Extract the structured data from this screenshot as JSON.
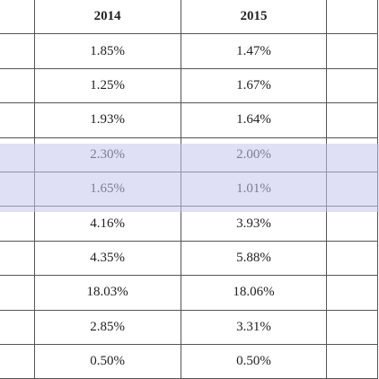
{
  "table": {
    "header": [
      "2014",
      "2015"
    ],
    "rows": [
      [
        "1.85%",
        "1.47%"
      ],
      [
        "1.25%",
        "1.67%"
      ],
      [
        "1.93%",
        "1.64%"
      ],
      [
        "2.30%",
        "2.00%"
      ],
      [
        "1.65%",
        "1.01%"
      ],
      [
        "4.16%",
        "3.93%"
      ],
      [
        "4.35%",
        "5.88%"
      ],
      [
        "18.03%",
        "18.06%"
      ],
      [
        "2.85%",
        "3.31%"
      ],
      [
        "0.50%",
        "0.50%"
      ]
    ]
  }
}
